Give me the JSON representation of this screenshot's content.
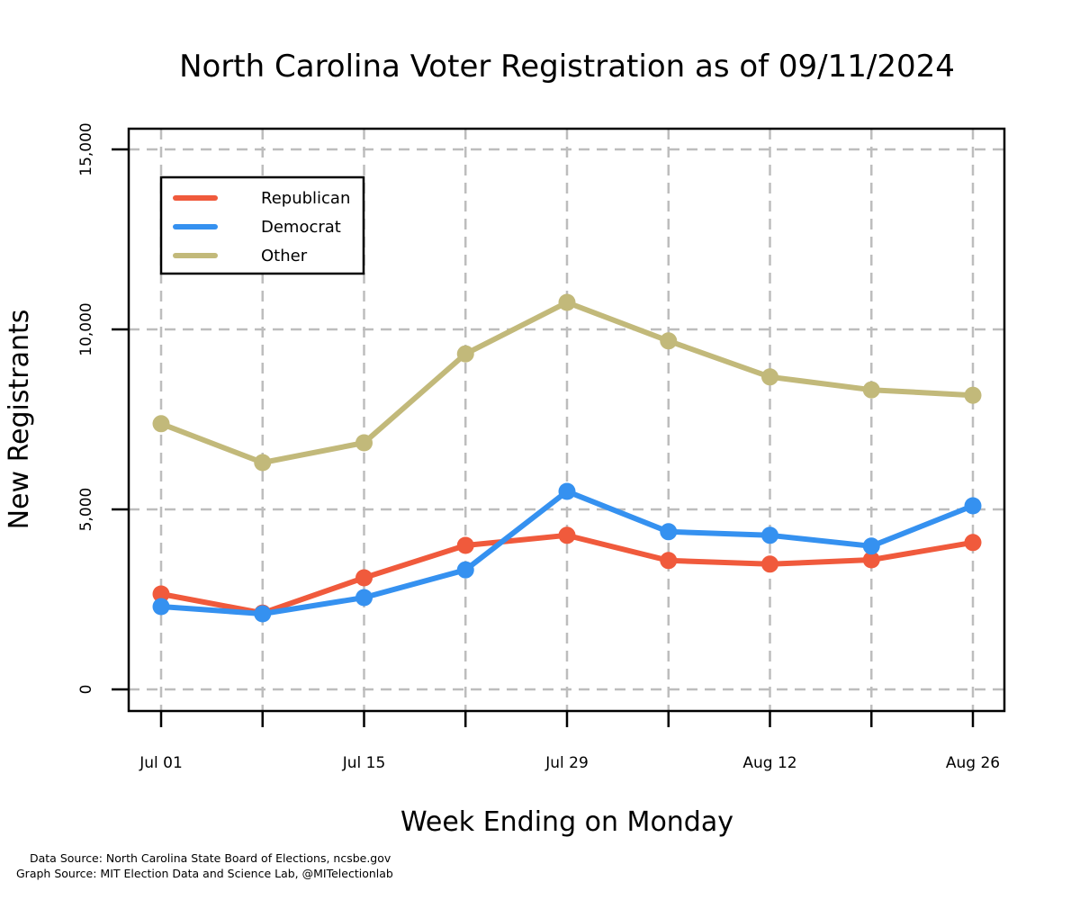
{
  "chart_data": {
    "type": "line",
    "title": "North Carolina Voter Registration as of 09/11/2024",
    "xlabel": "Week Ending on Monday",
    "ylabel": "New Registrants",
    "x": [
      "Jul 01",
      "Jul 08",
      "Jul 15",
      "Jul 22",
      "Jul 29",
      "Aug 05",
      "Aug 12",
      "Aug 19",
      "Aug 26"
    ],
    "x_tick_labels": [
      "Jul 01",
      "Jul 15",
      "Jul 29",
      "Aug 12",
      "Aug 26"
    ],
    "y_tick_labels": [
      "0",
      "5,000",
      "10,000",
      "15,000"
    ],
    "y_ticks": [
      0,
      5000,
      10000,
      15000
    ],
    "ylim": [
      -600,
      15600
    ],
    "grid": true,
    "legend_position": "top-left",
    "series": [
      {
        "name": "Republican",
        "color": "#f05a3c",
        "values": [
          2650,
          2120,
          3100,
          4000,
          4280,
          3580,
          3480,
          3600,
          4080
        ]
      },
      {
        "name": "Democrat",
        "color": "#3591f0",
        "values": [
          2300,
          2100,
          2550,
          3320,
          5500,
          4380,
          4280,
          3980,
          5100
        ]
      },
      {
        "name": "Other",
        "color": "#c2b97a",
        "values": [
          7380,
          6300,
          6850,
          9320,
          10750,
          9680,
          8680,
          8320,
          8170
        ]
      }
    ]
  },
  "sources": {
    "data": "Data Source: North Carolina State Board of Elections, ncsbe.gov",
    "graph": "Graph Source: MIT Election Data and Science Lab, @MITelectionlab"
  }
}
